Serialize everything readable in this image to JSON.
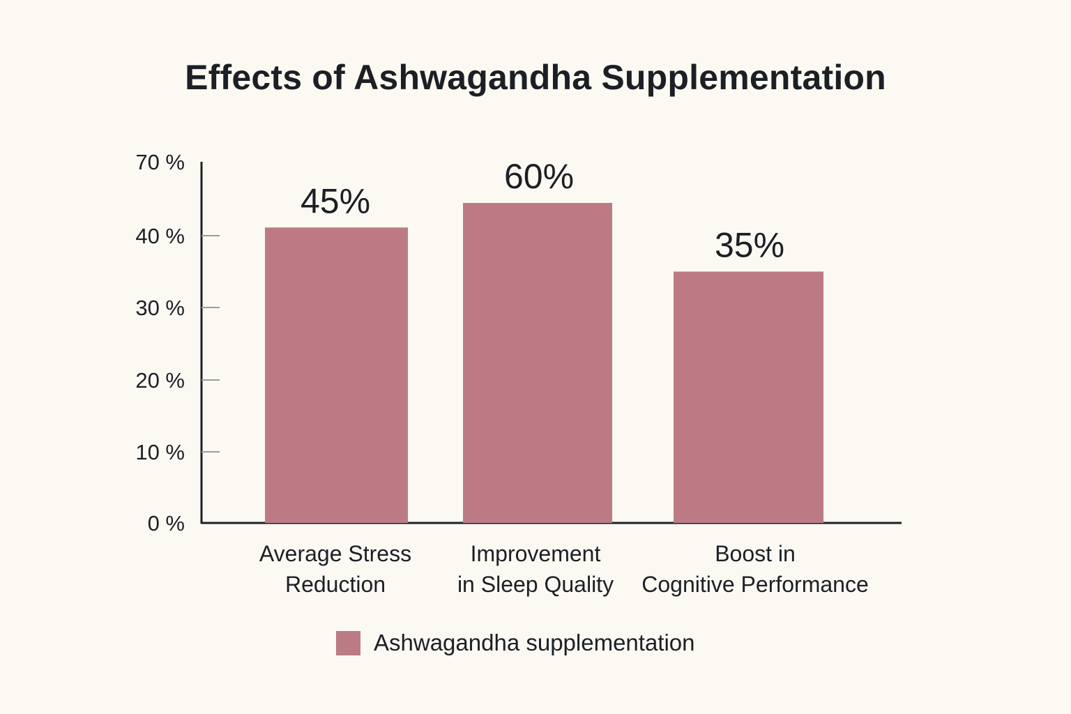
{
  "chart_data": {
    "type": "bar",
    "title": "Effects of Ashwagandha Supplementation",
    "xlabel": "",
    "ylabel": "",
    "ytick_labels": [
      "0 %",
      "10 %",
      "20 %",
      "30 %",
      "40 %",
      "70 %"
    ],
    "categories": [
      [
        "Average Stress",
        "Reduction"
      ],
      [
        "Improvement",
        "in Sleep Quality"
      ],
      [
        "Boost in",
        "Cognitive Performance"
      ]
    ],
    "series": [
      {
        "name": "Ashwagandha supplementation",
        "values": [
          45,
          60,
          35
        ],
        "labels": [
          "45%",
          "60%",
          "35%"
        ]
      }
    ],
    "colors": {
      "bar": "#bc7b84",
      "axis": "#1c1f24",
      "tick": "#9c9c9c"
    },
    "grid": false,
    "legend": "bottom-center"
  }
}
